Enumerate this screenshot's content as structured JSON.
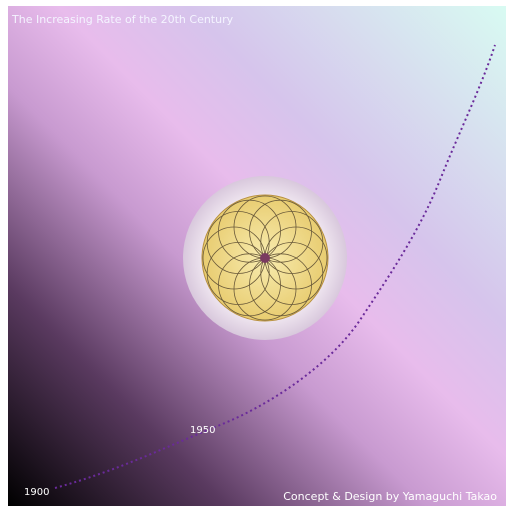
{
  "header": {
    "title": "The Increasing Rate of the 20th Century"
  },
  "labels": {
    "start": "1900",
    "middle": "1950"
  },
  "footer": {
    "credit": "Concept & Design by Yamaguchi Takao"
  }
}
